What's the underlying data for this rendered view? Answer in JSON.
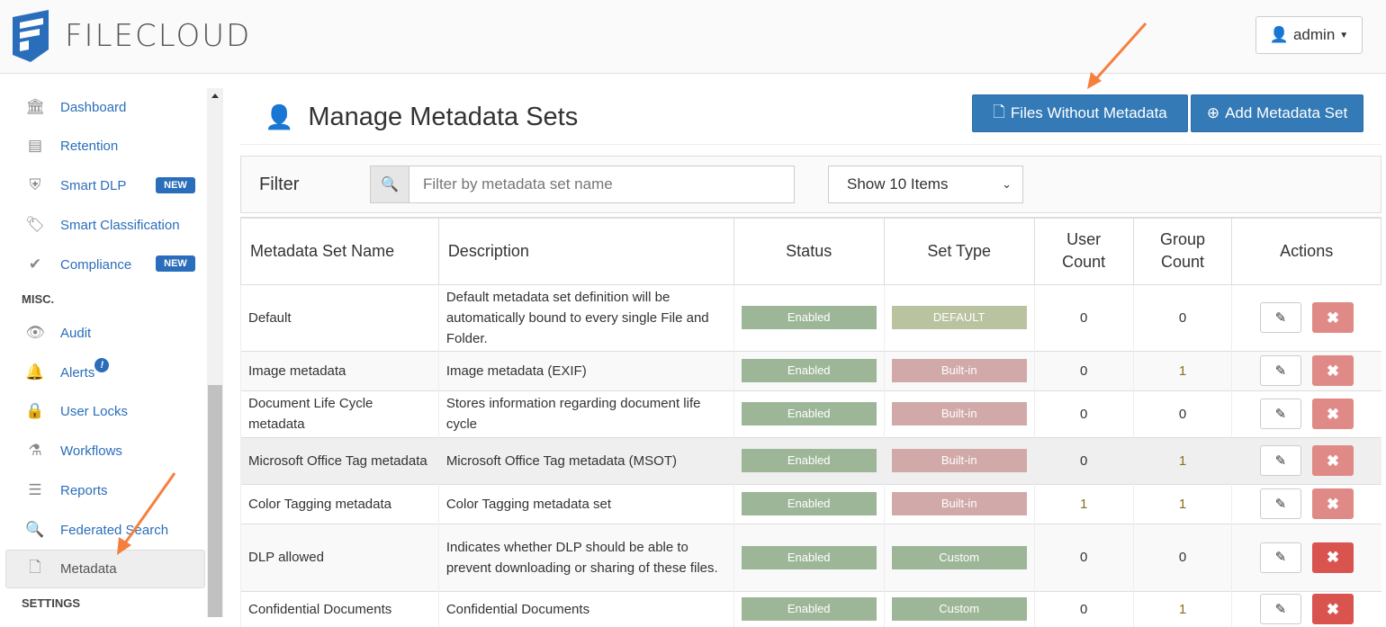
{
  "header": {
    "logo_text": "FILECLOUD",
    "user_menu": "admin"
  },
  "sidebar": {
    "items": [
      {
        "label": "Dashboard",
        "icon": "bank-icon"
      },
      {
        "label": "Retention",
        "icon": "archive-icon"
      },
      {
        "label": "Smart DLP",
        "icon": "shield-icon",
        "badge": "NEW"
      },
      {
        "label": "Smart Classification",
        "icon": "tags-icon"
      },
      {
        "label": "Compliance",
        "icon": "check-icon",
        "badge": "NEW"
      },
      {
        "label": "Audit",
        "icon": "eye-icon"
      },
      {
        "label": "Alerts",
        "icon": "bell-icon",
        "badge": "!"
      },
      {
        "label": "User Locks",
        "icon": "lock-icon"
      },
      {
        "label": "Workflows",
        "icon": "flask-icon"
      },
      {
        "label": "Reports",
        "icon": "list-icon"
      },
      {
        "label": "Federated Search",
        "icon": "search-icon"
      },
      {
        "label": "Metadata",
        "icon": "files-icon"
      }
    ],
    "section_misc": "MISC.",
    "section_settings": "SETTINGS"
  },
  "page": {
    "title": "Manage Metadata Sets",
    "files_without_metadata": "Files Without Metadata",
    "add_metadata_set": "Add Metadata Set"
  },
  "filter": {
    "label": "Filter",
    "placeholder": "Filter by metadata set name",
    "value": "",
    "show_items": "Show 10 Items"
  },
  "table": {
    "columns": [
      "Metadata Set Name",
      "Description",
      "Status",
      "Set Type",
      "User Count",
      "Group Count",
      "Actions"
    ],
    "rows": [
      {
        "name": "Default",
        "description": "Default metadata set definition will be automatically bound to every single File and Folder.",
        "status": "Enabled",
        "type": "DEFAULT",
        "users": "0",
        "groups": "0"
      },
      {
        "name": "Image metadata",
        "description": "Image metadata (EXIF)",
        "status": "Enabled",
        "type": "Built-in",
        "users": "0",
        "groups": "1"
      },
      {
        "name": "Document Life Cycle metadata",
        "description": "Stores information regarding document life cycle",
        "status": "Enabled",
        "type": "Built-in",
        "users": "0",
        "groups": "0"
      },
      {
        "name": "Microsoft Office Tag metadata",
        "description": "Microsoft Office Tag metadata (MSOT)",
        "status": "Enabled",
        "type": "Built-in",
        "users": "0",
        "groups": "1"
      },
      {
        "name": "Color Tagging metadata",
        "description": "Color Tagging metadata set",
        "status": "Enabled",
        "type": "Built-in",
        "users": "1",
        "groups": "1"
      },
      {
        "name": "DLP allowed",
        "description": "Indicates whether DLP should be able to prevent downloading or sharing of these files.",
        "status": "Enabled",
        "type": "Custom",
        "users": "0",
        "groups": "0"
      },
      {
        "name": "Confidential Documents",
        "description": "Confidential Documents",
        "status": "Enabled",
        "type": "Custom",
        "users": "0",
        "groups": "1"
      }
    ]
  },
  "colors": {
    "primary": "#337ab7",
    "enabled": "#9db698",
    "default": "#bac39f",
    "builtin": "#d1a9a8",
    "delete": "#d9534f",
    "annotation_arrow": "#f5803e"
  }
}
